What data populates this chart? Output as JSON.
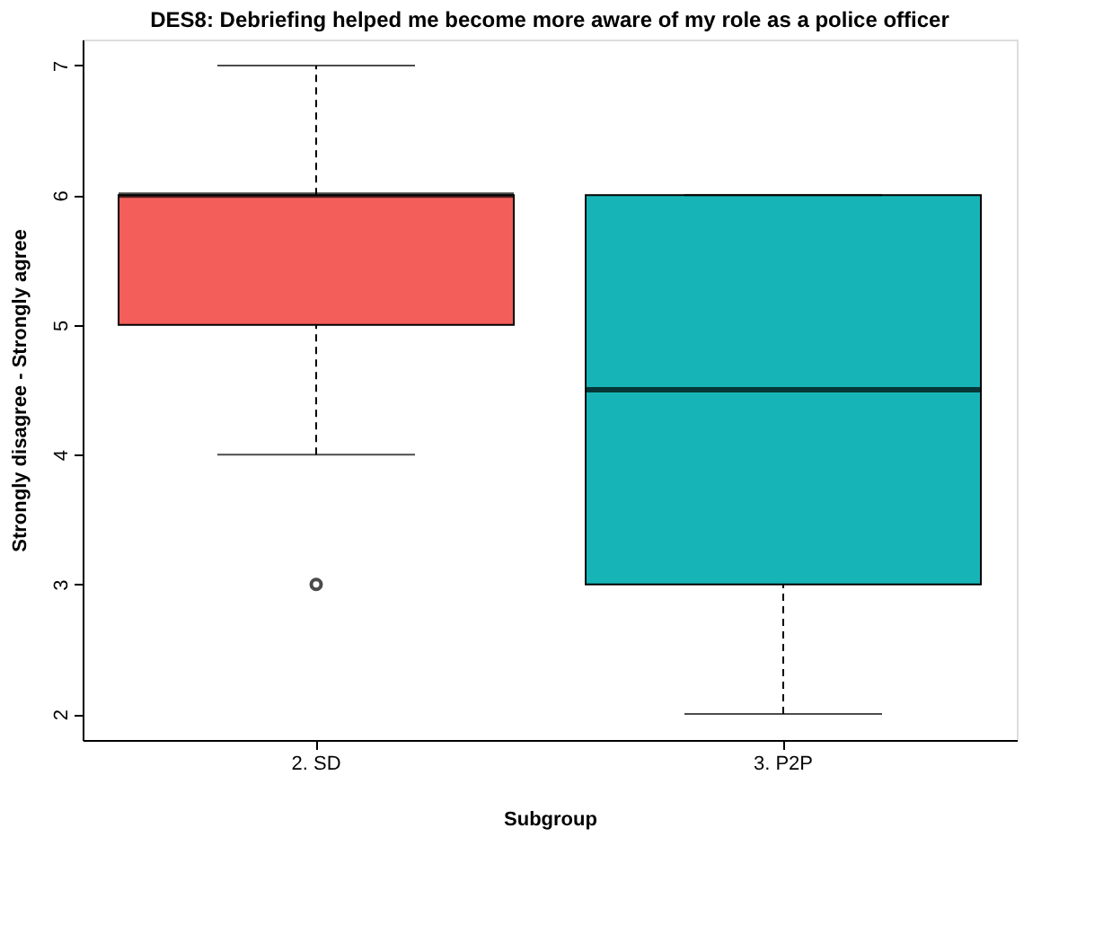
{
  "chart_data": {
    "type": "box",
    "title": "DES8: Debriefing helped me become more aware of my role as a police officer",
    "xlabel": "Subgroup",
    "ylabel": "Strongly disagree - Strongly agree",
    "categories": [
      "2. SD",
      "3. P2P"
    ],
    "colors": [
      "#f35e5a",
      "#17b4b7"
    ],
    "boxes": [
      {
        "low": 4,
        "q1": 5,
        "median": 6,
        "q3": 6,
        "high": 7,
        "outliers": [
          3
        ]
      },
      {
        "low": 2,
        "q1": 3,
        "median": 4.5,
        "q3": 6,
        "high": 6
      }
    ],
    "ylim": [
      1.8,
      7.2
    ],
    "yticks": [
      2,
      3,
      4,
      5,
      6,
      7
    ],
    "grid": false
  }
}
